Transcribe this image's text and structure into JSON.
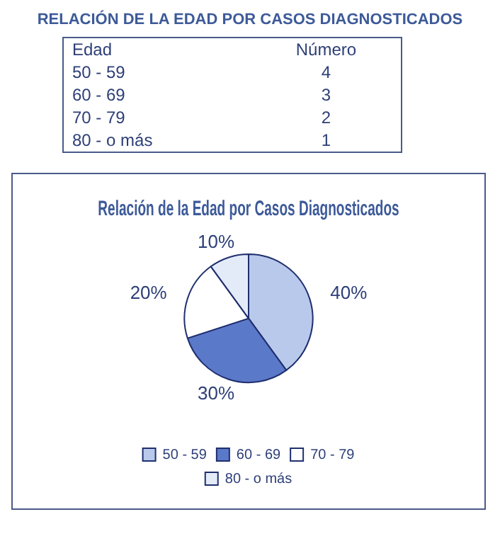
{
  "chart_data": [
    {
      "type": "other",
      "title": "RELACIÓN DE LA EDAD POR CASOS DIAGNOSTICADOS",
      "xlabel": "Edad",
      "ylabel": "Número",
      "categories": [
        "50 - 59",
        "60 - 69",
        "70 - 79",
        "80 - o más"
      ],
      "values": [
        4,
        3,
        2,
        1
      ],
      "data_labels": true
    },
    {
      "type": "pie",
      "title": "Relación de la Edad por Casos Diagnosticados",
      "categories": [
        "50 - 59",
        "60 - 69",
        "70 - 79",
        "80 - o más"
      ],
      "values": [
        40,
        30,
        20,
        10
      ],
      "value_labels": [
        "40%",
        "30%",
        "20%",
        "10%"
      ],
      "colors": [
        "#b9c9ec",
        "#5b79c9",
        "#ffffff",
        "#e4ebf8"
      ],
      "legend": "bottom"
    }
  ]
}
